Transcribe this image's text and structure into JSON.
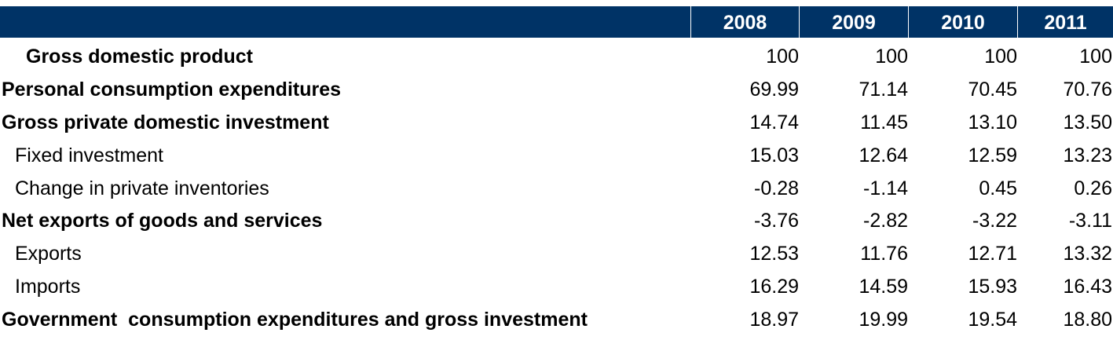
{
  "chart_data": {
    "type": "table",
    "columns": [
      "2008",
      "2009",
      "2010",
      "2011"
    ],
    "rows": [
      {
        "label": "Gross domestic product",
        "level": "top",
        "values": [
          "100",
          "100",
          "100",
          "100"
        ]
      },
      {
        "label": "Personal consumption expenditures",
        "level": "0",
        "values": [
          "69.99",
          "71.14",
          "70.45",
          "70.76"
        ]
      },
      {
        "label": "Gross private domestic investment",
        "level": "0",
        "values": [
          "14.74",
          "11.45",
          "13.10",
          "13.50"
        ]
      },
      {
        "label": "Fixed investment",
        "level": "1",
        "values": [
          "15.03",
          "12.64",
          "12.59",
          "13.23"
        ]
      },
      {
        "label": "Change in private inventories",
        "level": "1",
        "values": [
          "-0.28",
          "-1.14",
          "0.45",
          "0.26"
        ]
      },
      {
        "label": "Net exports of goods and services",
        "level": "0",
        "values": [
          "-3.76",
          "-2.82",
          "-3.22",
          "-3.11"
        ]
      },
      {
        "label": "Exports",
        "level": "1",
        "values": [
          "12.53",
          "11.76",
          "12.71",
          "13.32"
        ]
      },
      {
        "label": "Imports",
        "level": "1",
        "values": [
          "16.29",
          "14.59",
          "15.93",
          "16.43"
        ]
      },
      {
        "label": "Government  consumption expenditures and gross investment",
        "level": "0",
        "values": [
          "18.97",
          "19.99",
          "19.54",
          "18.80"
        ]
      }
    ]
  },
  "colors": {
    "header_background": "#003366",
    "header_text": "#ffffff"
  }
}
